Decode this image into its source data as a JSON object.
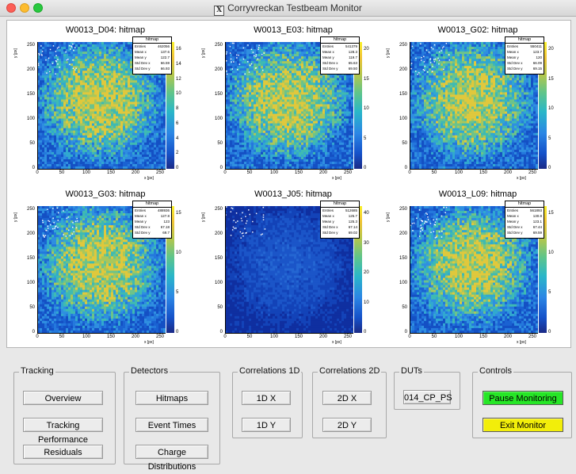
{
  "window": {
    "title": "Corryvreckan Testbeam Monitor",
    "app_icon": "x11-icon"
  },
  "histograms": [
    {
      "title": "W0013_D04: hitmap",
      "stats_name": "hitmap",
      "entries": "462056",
      "mean_x": "137.6",
      "mean_y": "122.7",
      "std_x": "66.59",
      "std_y": "66.93",
      "z_ticks": [
        "0",
        "2",
        "4",
        "6",
        "8",
        "10",
        "12",
        "14",
        "16"
      ]
    },
    {
      "title": "W0013_E03: hitmap",
      "stats_name": "hitmap",
      "entries": "541379",
      "mean_x": "128.3",
      "mean_y": "119.7",
      "std_x": "65.63",
      "std_y": "69.50",
      "z_ticks": [
        "0",
        "5",
        "10",
        "15",
        "20"
      ]
    },
    {
      "title": "W0013_G02: hitmap",
      "stats_name": "hitmap",
      "entries": "550411",
      "mean_x": "123.7",
      "mean_y": "120",
      "std_x": "66.09",
      "std_y": "69.15",
      "z_ticks": [
        "0",
        "5",
        "10",
        "15",
        "20"
      ]
    },
    {
      "title": "W0013_G03: hitmap",
      "stats_name": "hitmap",
      "entries": "488936",
      "mean_x": "127.8",
      "mean_y": "123",
      "std_x": "67.18",
      "std_y": "69.7",
      "z_ticks": [
        "0",
        "5",
        "10",
        "15"
      ]
    },
    {
      "title": "W0013_J05: hitmap",
      "stats_name": "hitmap",
      "entries": "512685",
      "mean_x": "125.7",
      "mean_y": "125.3",
      "std_x": "67.14",
      "std_y": "69.02",
      "z_ticks": [
        "0",
        "10",
        "20",
        "30",
        "40"
      ]
    },
    {
      "title": "W0013_L09: hitmap",
      "stats_name": "hitmap",
      "entries": "561893",
      "mean_x": "130.8",
      "mean_y": "123.1",
      "std_x": "67.44",
      "std_y": "69.59",
      "z_ticks": [
        "0",
        "5",
        "10",
        "15"
      ]
    }
  ],
  "stats_labels": {
    "entries": "Entries",
    "mean_x": "Mean x",
    "mean_y": "Mean y",
    "std_x": "Std Dev x",
    "std_y": "Std Dev y"
  },
  "axes": {
    "x_label": "x [px]",
    "y_label": "y [px]",
    "x_ticks": [
      "0",
      "50",
      "100",
      "150",
      "200",
      "250"
    ],
    "y_ticks": [
      "0",
      "50",
      "100",
      "150",
      "200",
      "250"
    ]
  },
  "controls": {
    "tracking": {
      "label": "Tracking",
      "buttons": [
        "Overview",
        "Tracking Performance",
        "Residuals"
      ]
    },
    "detectors": {
      "label": "Detectors",
      "buttons": [
        "Hitmaps",
        "Event Times",
        "Charge Distributions"
      ]
    },
    "corr1d": {
      "label": "Correlations 1D",
      "buttons": [
        "1D X",
        "1D Y"
      ]
    },
    "corr2d": {
      "label": "Correlations 2D",
      "buttons": [
        "2D X",
        "2D Y"
      ]
    },
    "duts": {
      "label": "DUTs",
      "buttons": [
        "014_CP_PS"
      ]
    },
    "ctrl": {
      "label": "Controls",
      "pause": "Pause Monitoring",
      "exit": "Exit Monitor"
    }
  },
  "colors": {
    "pause": "#26e626",
    "exit": "#f2ee0a"
  }
}
